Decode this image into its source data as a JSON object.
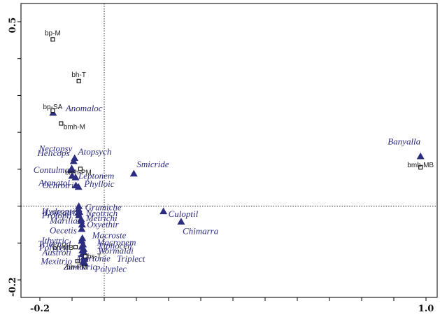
{
  "chart_data": {
    "type": "scatter",
    "title": "",
    "xlabel": "",
    "ylabel": "",
    "xlim": [
      -0.25,
      1.05
    ],
    "ylim": [
      -0.23,
      0.52
    ],
    "x_tick_labels": [
      {
        "value": -0.2,
        "label": "-0.2"
      },
      {
        "value": 1.0,
        "label": "1.0"
      }
    ],
    "y_tick_labels": [
      {
        "value": 0.5,
        "label": "0.5"
      },
      {
        "value": -0.2,
        "label": "-0.2"
      }
    ],
    "x_minor_ticks": [
      -0.2,
      -0.1,
      0.0,
      0.1,
      0.2,
      0.3,
      0.4,
      0.5,
      0.6,
      0.7,
      0.8,
      0.9,
      1.0
    ],
    "y_minor_ticks": [
      -0.2,
      -0.1,
      0.0,
      0.1,
      0.2,
      0.3,
      0.4,
      0.5
    ],
    "reference_lines": {
      "x": 0.0,
      "y": 0.0,
      "style": "dotted"
    },
    "colors": {
      "taxa": "#2d2d80",
      "sites": "#1a1a1a"
    },
    "taxa": [
      {
        "name": "Anomaloc",
        "x": -0.159,
        "y": 0.253
      },
      {
        "name": "Banyalla",
        "x": 0.983,
        "y": 0.135
      },
      {
        "name": "Atopsych",
        "x": -0.092,
        "y": 0.13
      },
      {
        "name": "Smicride",
        "x": 0.092,
        "y": 0.088
      },
      {
        "name": "Helicops",
        "x": -0.101,
        "y": 0.102
      },
      {
        "name": "Contulma",
        "x": -0.102,
        "y": 0.098
      },
      {
        "name": "Atanatol",
        "x": -0.1,
        "y": 0.082
      },
      {
        "name": "Leptonem",
        "x": -0.089,
        "y": 0.078
      },
      {
        "name": "Ochrotri",
        "x": -0.088,
        "y": 0.056
      },
      {
        "name": "Phylloic",
        "x": -0.08,
        "y": 0.052
      },
      {
        "name": "Grumiche",
        "x": -0.079,
        "y": 0.0
      },
      {
        "name": "Hydropti",
        "x": -0.08,
        "y": -0.008
      },
      {
        "name": "Neotrich",
        "x": -0.077,
        "y": -0.016
      },
      {
        "name": "Leucotri",
        "x": -0.081,
        "y": -0.018
      },
      {
        "name": "Culoptil",
        "x": 0.184,
        "y": -0.014
      },
      {
        "name": "Chimarra",
        "x": 0.239,
        "y": -0.042
      },
      {
        "name": "Protopti",
        "x": -0.079,
        "y": -0.025
      },
      {
        "name": "Metrichi",
        "x": -0.072,
        "y": -0.035
      },
      {
        "name": "Marilia",
        "x": -0.072,
        "y": -0.04
      },
      {
        "name": "Oxyethir",
        "x": -0.069,
        "y": -0.05
      },
      {
        "name": "Oecetis",
        "x": -0.07,
        "y": -0.062
      },
      {
        "name": "Macroste",
        "x": -0.068,
        "y": -0.087
      },
      {
        "name": "Ithytric",
        "x": -0.07,
        "y": -0.094
      },
      {
        "name": "Macronem",
        "x": -0.066,
        "y": -0.104
      },
      {
        "name": "Triaenod",
        "x": -0.069,
        "y": -0.11
      },
      {
        "name": "Xiphocen",
        "x": -0.064,
        "y": -0.116
      },
      {
        "name": "Polycen",
        "x": -0.068,
        "y": -0.12
      },
      {
        "name": "Wormaldi",
        "x": -0.063,
        "y": -0.125
      },
      {
        "name": "Austroti",
        "x": -0.068,
        "y": -0.13
      },
      {
        "name": "Mortonie",
        "x": -0.062,
        "y": -0.138
      },
      {
        "name": "Triplect",
        "x": -0.061,
        "y": -0.143
      },
      {
        "name": "Mexitrio",
        "x": -0.065,
        "y": -0.148
      },
      {
        "name": "Zumatric",
        "x": -0.064,
        "y": -0.152
      },
      {
        "name": "Polyplec",
        "x": -0.06,
        "y": -0.155
      },
      {
        "name": "Nectopsy",
        "x": -0.095,
        "y": 0.122
      }
    ],
    "sites": [
      {
        "name": "bp-M",
        "x": -0.16,
        "y": 0.452
      },
      {
        "name": "bh-T",
        "x": -0.079,
        "y": 0.339
      },
      {
        "name": "bp-SA",
        "x": -0.16,
        "y": 0.259
      },
      {
        "name": "bmh-M",
        "x": -0.134,
        "y": 0.224
      },
      {
        "name": "bmh-PM",
        "x": -0.074,
        "y": 0.101
      },
      {
        "name": "bmh-MB",
        "x": 0.983,
        "y": 0.105
      },
      {
        "name": "bh-MB",
        "x": -0.089,
        "y": -0.111
      },
      {
        "name": "bs-T",
        "x": -0.059,
        "y": -0.136
      },
      {
        "name": "bh-PM",
        "x": -0.083,
        "y": -0.149
      }
    ]
  }
}
